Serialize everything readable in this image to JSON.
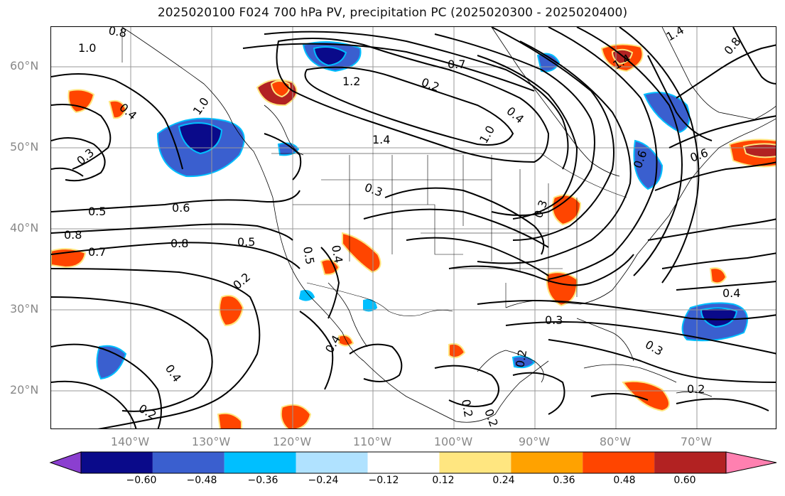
{
  "title": "2025020100 F024 700 hPa PV, precipitation PC (2025020300 - 2025020400)",
  "lat_labels": [
    "60°N",
    "50°N",
    "40°N",
    "30°N",
    "20°N"
  ],
  "lon_labels": [
    "140°W",
    "130°W",
    "120°W",
    "110°W",
    "100°W",
    "90°W",
    "80°W",
    "70°W"
  ],
  "contour_labels": [
    "0.8",
    "1.0",
    "0.4",
    "0.3",
    "1.0",
    "1.2",
    "0.7",
    "1.4",
    "0.2",
    "1.4",
    "1.4",
    "1.0",
    "0.6",
    "0.8",
    "0.3",
    "0.5",
    "0.6",
    "0.8",
    "0.5",
    "0.5",
    "0.4",
    "0.3",
    "0.4",
    "0.2",
    "0.7",
    "0.8",
    "0.3",
    "0.4",
    "0.3",
    "0.2",
    "0.2",
    "0.2",
    "0.4",
    "0.2",
    "0.2",
    "0.4",
    "0.6"
  ],
  "colorbar": {
    "ticks": [
      "−0.60",
      "−0.48",
      "−0.36",
      "−0.24",
      "−0.12",
      "0.12",
      "0.24",
      "0.36",
      "0.48",
      "0.60"
    ],
    "colors": [
      "#8b3fd0",
      "#0a0a8a",
      "#3a5fcf",
      "#00bfff",
      "#b0e2ff",
      "#ffffff",
      "#ffe680",
      "#ffa200",
      "#ff4500",
      "#b22222",
      "#ff80b0"
    ]
  }
}
